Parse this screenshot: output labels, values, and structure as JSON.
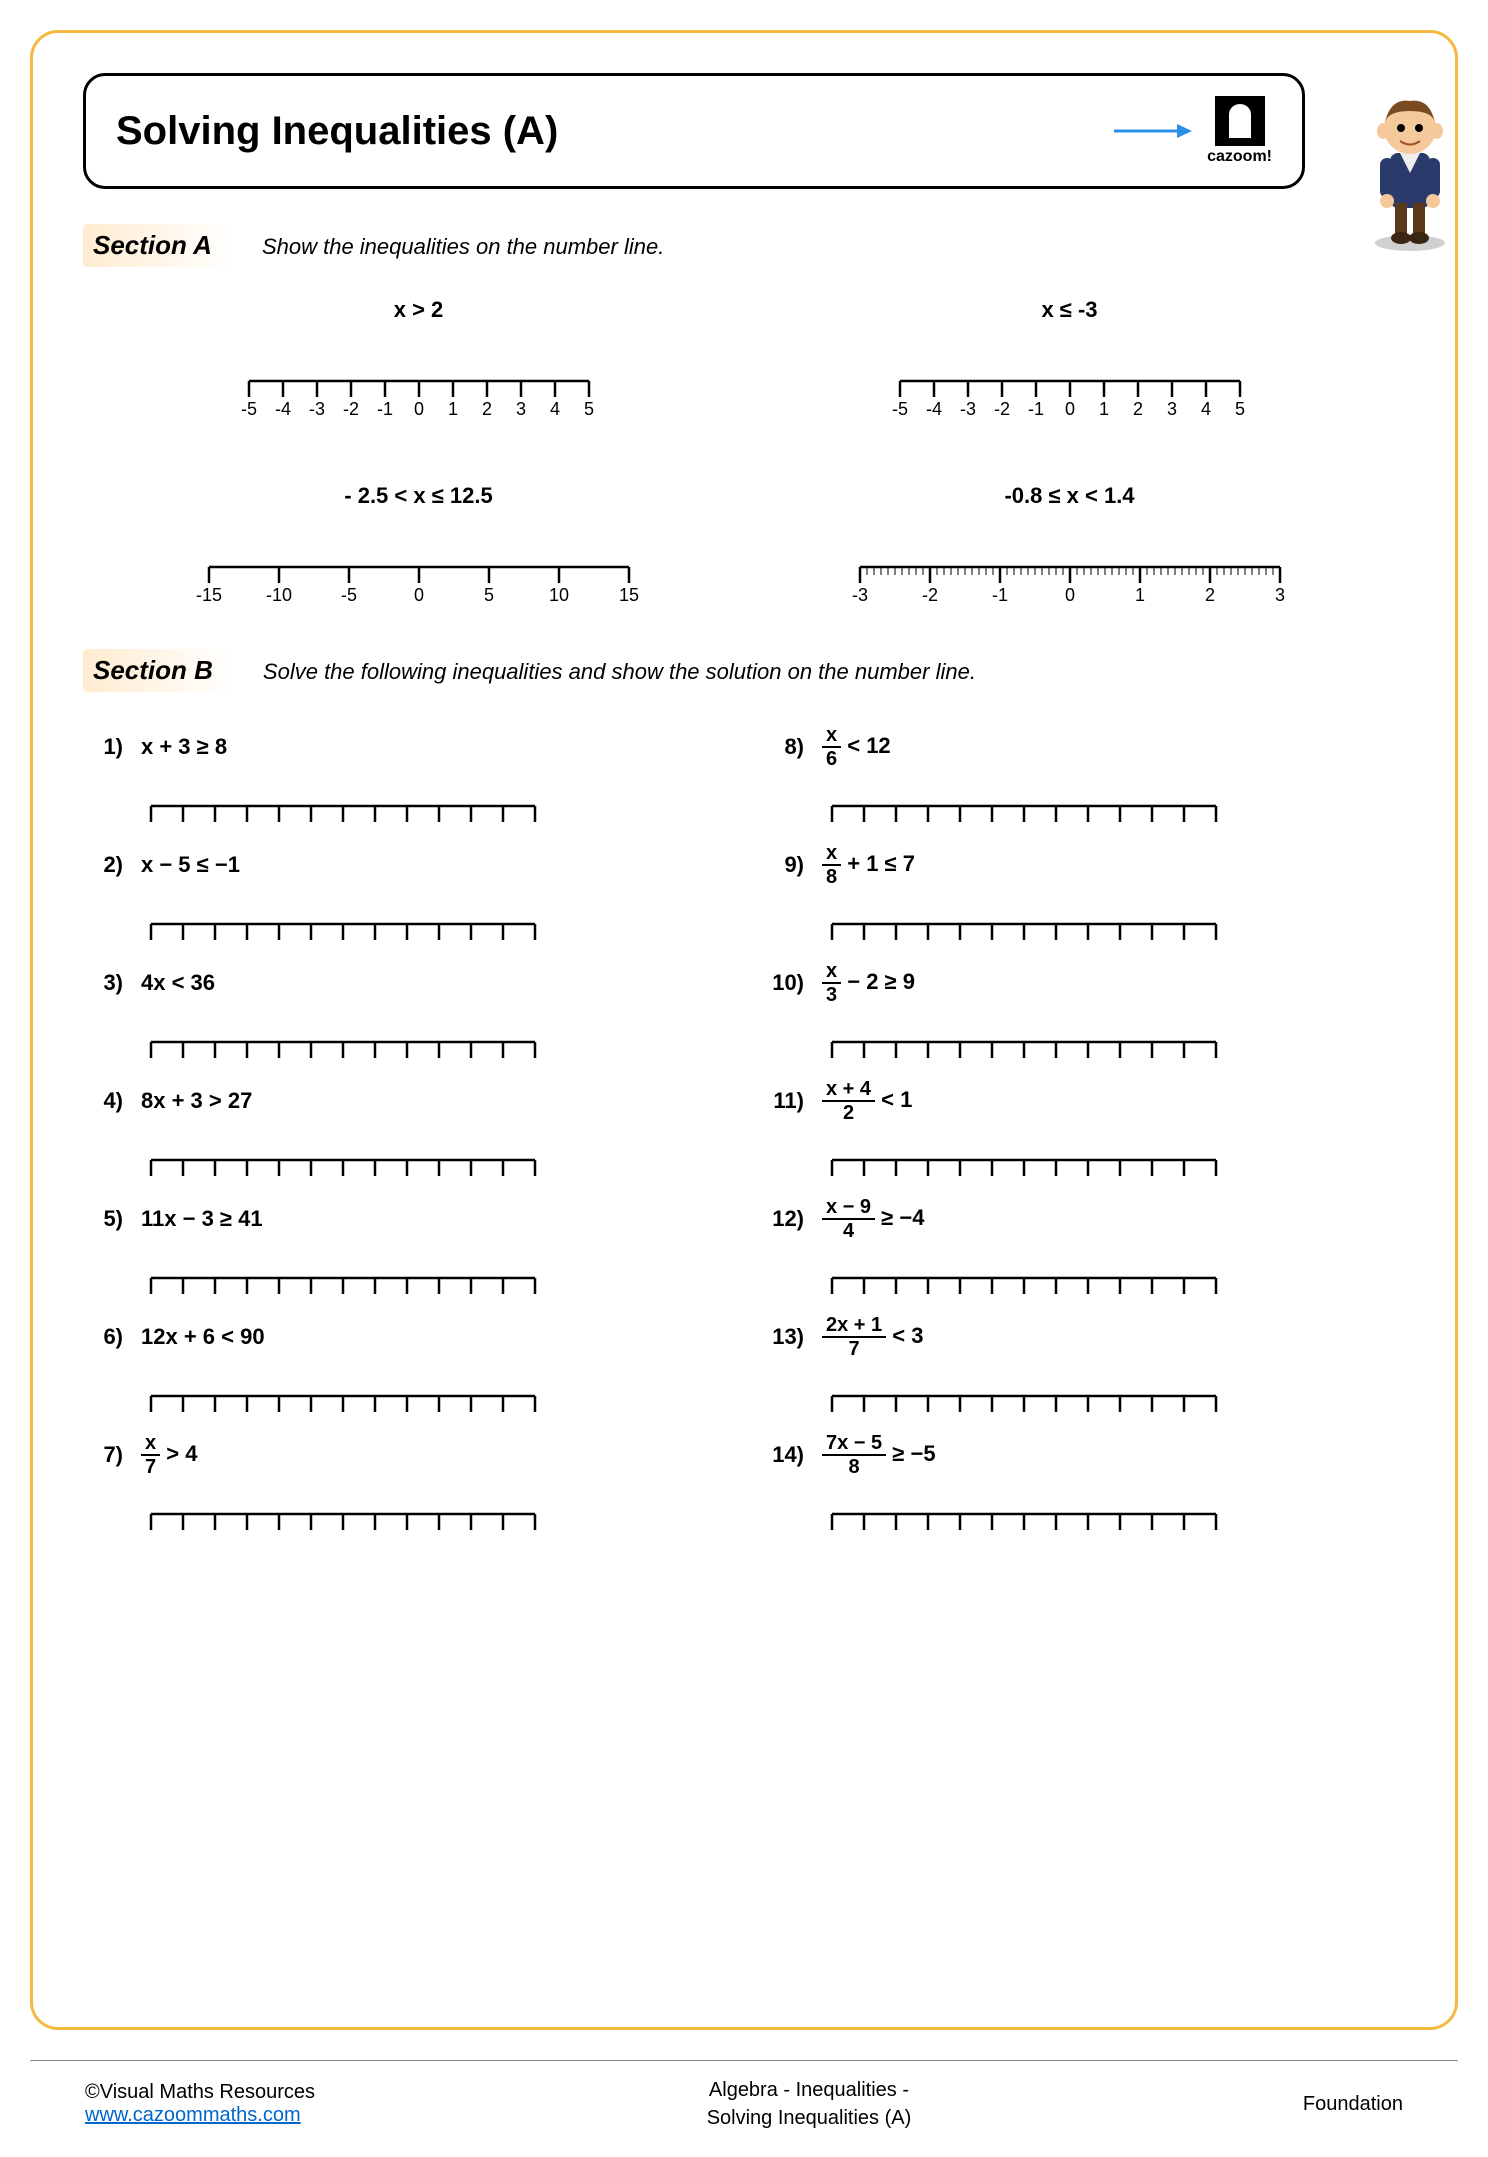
{
  "title": "Solving Inequalities (A)",
  "logo_text": "cazoom!",
  "arrow_color": "#2b8fe6",
  "sectionA": {
    "label": "Section A",
    "instruction": "Show the inequalities on the number line.",
    "items": [
      {
        "caption": "x > 2",
        "ticks": [
          "-5",
          "-4",
          "-3",
          "-2",
          "-1",
          "0",
          "1",
          "2",
          "3",
          "4",
          "5"
        ]
      },
      {
        "caption": "x ≤ -3",
        "ticks": [
          "-5",
          "-4",
          "-3",
          "-2",
          "-1",
          "0",
          "1",
          "2",
          "3",
          "4",
          "5"
        ]
      },
      {
        "caption": "- 2.5 < x ≤ 12.5",
        "ticks": [
          "-15",
          "-10",
          "-5",
          "0",
          "5",
          "10",
          "15"
        ]
      },
      {
        "caption": "-0.8 ≤ x < 1.4",
        "ticks": [
          "-3",
          "-2",
          "-1",
          "0",
          "1",
          "2",
          "3"
        ],
        "minor": true
      }
    ]
  },
  "sectionB": {
    "label": "Section B",
    "instruction": "Solve the following inequalities and show the solution on the number line.",
    "blank_ticks": 13,
    "left": [
      {
        "n": "1)",
        "text": "x + 3 ≥ 8"
      },
      {
        "n": "2)",
        "text": "x − 5 ≤ −1"
      },
      {
        "n": "3)",
        "text": "4x < 36"
      },
      {
        "n": "4)",
        "text": "8x + 3 > 27"
      },
      {
        "n": "5)",
        "text": "11x − 3 ≥ 41"
      },
      {
        "n": "6)",
        "text": "12x + 6 < 90"
      },
      {
        "n": "7)",
        "frac_top": "x",
        "frac_bot": "7",
        "after": " > 4"
      }
    ],
    "right": [
      {
        "n": "8)",
        "frac_top": "x",
        "frac_bot": "6",
        "after": " < 12"
      },
      {
        "n": "9)",
        "frac_top": "x",
        "frac_bot": "8",
        "after": " + 1 ≤ 7"
      },
      {
        "n": "10)",
        "frac_top": "x",
        "frac_bot": "3",
        "after": " − 2 ≥ 9"
      },
      {
        "n": "11)",
        "frac_top": "x + 4",
        "frac_bot": "2",
        "after": " < 1"
      },
      {
        "n": "12)",
        "frac_top": "x − 9",
        "frac_bot": "4",
        "after": " ≥ −4"
      },
      {
        "n": "13)",
        "frac_top": "2x + 1",
        "frac_bot": "7",
        "after": " < 3"
      },
      {
        "n": "14)",
        "frac_top": "7x − 5",
        "frac_bot": "8",
        "after": " ≥ −5"
      }
    ]
  },
  "footer": {
    "left1": "©Visual Maths Resources",
    "left2_text": "www.cazoommaths.com",
    "left2_href": "#",
    "center1": "Algebra - Inequalities -",
    "center2": "Solving Inequalities (A)",
    "right": "Foundation"
  },
  "colors": {
    "border": "#f5b942",
    "section_bg": "rgba(255,200,120,0.35)"
  }
}
